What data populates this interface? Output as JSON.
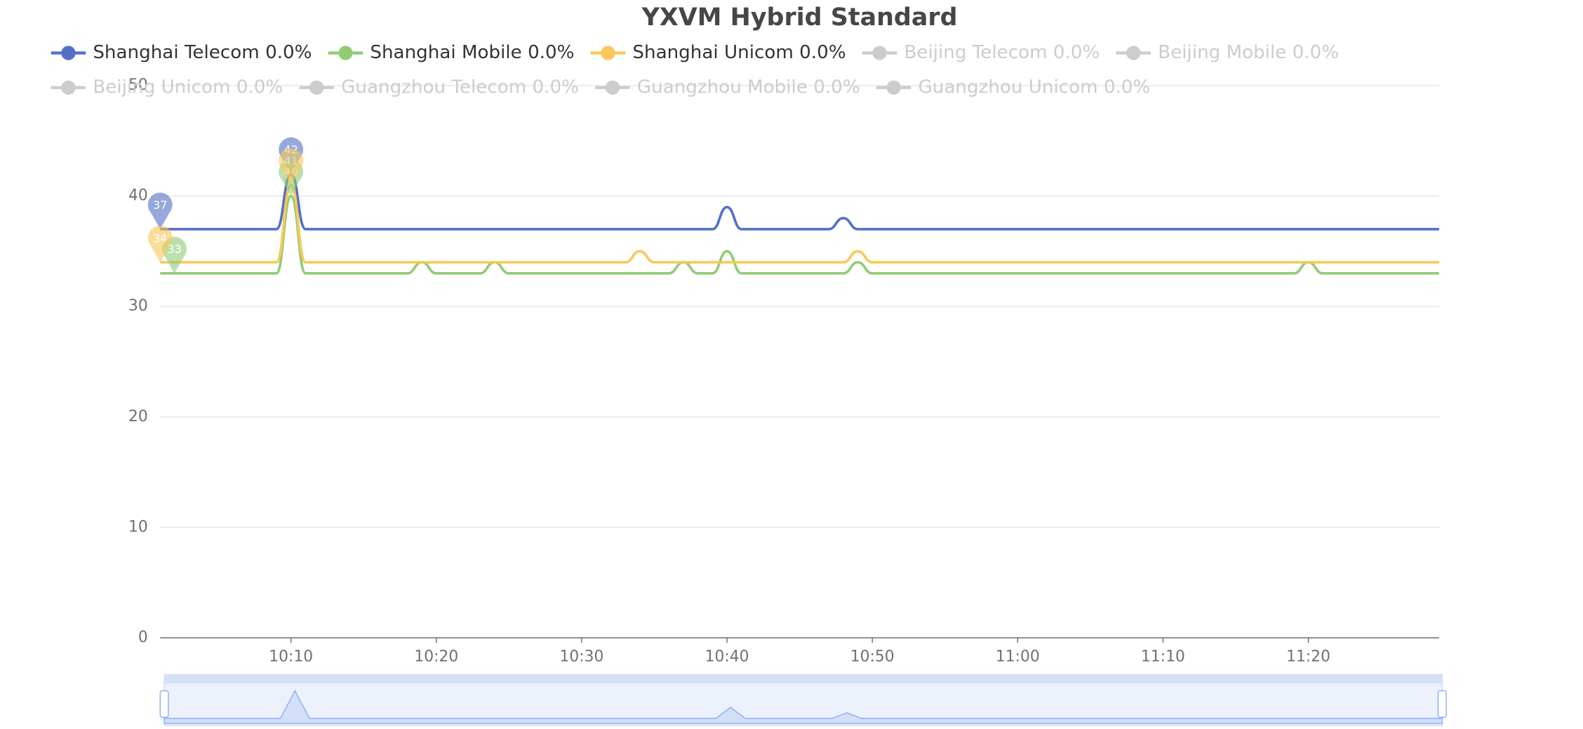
{
  "chart_data": {
    "type": "line",
    "title": "YXVM Hybrid Standard",
    "x": [
      "10:01",
      "10:02",
      "10:03",
      "10:04",
      "10:05",
      "10:06",
      "10:07",
      "10:08",
      "10:09",
      "10:10",
      "10:11",
      "10:12",
      "10:13",
      "10:14",
      "10:15",
      "10:16",
      "10:17",
      "10:18",
      "10:19",
      "10:20",
      "10:21",
      "10:22",
      "10:23",
      "10:24",
      "10:25",
      "10:26",
      "10:27",
      "10:28",
      "10:29",
      "10:30",
      "10:31",
      "10:32",
      "10:33",
      "10:34",
      "10:35",
      "10:36",
      "10:37",
      "10:38",
      "10:39",
      "10:40",
      "10:41",
      "10:42",
      "10:43",
      "10:44",
      "10:45",
      "10:46",
      "10:47",
      "10:48",
      "10:49",
      "10:50",
      "10:51",
      "10:52",
      "10:53",
      "10:54",
      "10:55",
      "10:56",
      "10:57",
      "10:58",
      "10:59",
      "11:00",
      "11:01",
      "11:02",
      "11:03",
      "11:04",
      "11:05",
      "11:06",
      "11:07",
      "11:08",
      "11:09",
      "11:10",
      "11:11",
      "11:12",
      "11:13",
      "11:14",
      "11:15",
      "11:16",
      "11:17",
      "11:18",
      "11:19",
      "11:20",
      "11:21",
      "11:22",
      "11:23",
      "11:24",
      "11:25",
      "11:26",
      "11:27",
      "11:28",
      "11:29"
    ],
    "xticks": [
      "10:10",
      "10:20",
      "10:30",
      "10:40",
      "10:50",
      "11:00",
      "11:10",
      "11:20"
    ],
    "ylim": [
      0,
      50
    ],
    "yticks": [
      0,
      10,
      20,
      30,
      40,
      50
    ],
    "grid": true,
    "smooth": true,
    "legend": "top",
    "series": [
      {
        "name": "Shanghai Telecom 0.0%",
        "color": "#5470c6",
        "values": [
          37,
          37,
          37,
          37,
          37,
          37,
          37,
          37,
          37,
          42,
          37,
          37,
          37,
          37,
          37,
          37,
          37,
          37,
          37,
          37,
          37,
          37,
          37,
          37,
          37,
          37,
          37,
          37,
          37,
          37,
          37,
          37,
          37,
          37,
          37,
          37,
          37,
          37,
          37,
          39,
          37,
          37,
          37,
          37,
          37,
          37,
          37,
          38,
          37,
          37,
          37,
          37,
          37,
          37,
          37,
          37,
          37,
          37,
          37,
          37,
          37,
          37,
          37,
          37,
          37,
          37,
          37,
          37,
          37,
          37,
          37,
          37,
          37,
          37,
          37,
          37,
          37,
          37,
          37,
          37,
          37,
          37,
          37,
          37,
          37,
          37,
          37,
          37,
          37
        ]
      },
      {
        "name": "Shanghai Mobile 0.0%",
        "color": "#91cc75",
        "values": [
          33,
          33,
          33,
          33,
          33,
          33,
          33,
          33,
          33,
          40,
          33,
          33,
          33,
          33,
          33,
          33,
          33,
          33,
          34,
          33,
          33,
          33,
          33,
          34,
          33,
          33,
          33,
          33,
          33,
          33,
          33,
          33,
          33,
          33,
          33,
          33,
          34,
          33,
          33,
          35,
          33,
          33,
          33,
          33,
          33,
          33,
          33,
          33,
          34,
          33,
          33,
          33,
          33,
          33,
          33,
          33,
          33,
          33,
          33,
          33,
          33,
          33,
          33,
          33,
          33,
          33,
          33,
          33,
          33,
          33,
          33,
          33,
          33,
          33,
          33,
          33,
          33,
          33,
          33,
          34,
          33,
          33,
          33,
          33,
          33,
          33,
          33,
          33,
          33
        ]
      },
      {
        "name": "Shanghai Unicom 0.0%",
        "color": "#fac858",
        "values": [
          34,
          34,
          34,
          34,
          34,
          34,
          34,
          34,
          34,
          41,
          34,
          34,
          34,
          34,
          34,
          34,
          34,
          34,
          34,
          34,
          34,
          34,
          34,
          34,
          34,
          34,
          34,
          34,
          34,
          34,
          34,
          34,
          34,
          35,
          34,
          34,
          34,
          34,
          34,
          34,
          34,
          34,
          34,
          34,
          34,
          34,
          34,
          34,
          35,
          34,
          34,
          34,
          34,
          34,
          34,
          34,
          34,
          34,
          34,
          34,
          34,
          34,
          34,
          34,
          34,
          34,
          34,
          34,
          34,
          34,
          34,
          34,
          34,
          34,
          34,
          34,
          34,
          34,
          34,
          34,
          34,
          34,
          34,
          34,
          34,
          34,
          34,
          34,
          34
        ]
      },
      {
        "name": "Beijing Telecom 0.0%",
        "color": "#cccccc",
        "selected": false
      },
      {
        "name": "Beijing Mobile 0.0%",
        "color": "#cccccc",
        "selected": false
      },
      {
        "name": "Beijing Unicom 0.0%",
        "color": "#cccccc",
        "selected": false
      },
      {
        "name": "Guangzhou Telecom 0.0%",
        "color": "#cccccc",
        "selected": false
      },
      {
        "name": "Guangzhou Mobile 0.0%",
        "color": "#cccccc",
        "selected": false
      },
      {
        "name": "Guangzhou Unicom 0.0%",
        "color": "#cccccc",
        "selected": false
      }
    ]
  }
}
